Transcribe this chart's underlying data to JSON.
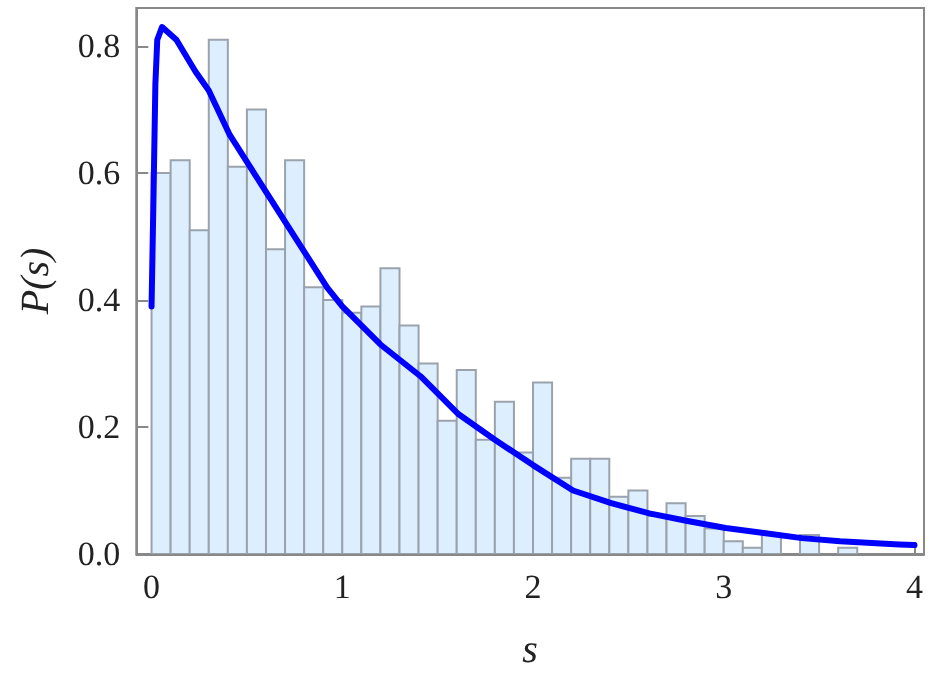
{
  "chart_data": {
    "type": "histogram",
    "xlabel": "s",
    "ylabel": "P(s)",
    "xlim": [
      -0.08,
      4.05
    ],
    "ylim": [
      0,
      0.86
    ],
    "xticks": [
      0,
      1,
      2,
      3,
      4
    ],
    "yticks": [
      {
        "value": 0,
        "label": "0.0"
      },
      {
        "value": 0.2,
        "label": "0.2"
      },
      {
        "value": 0.4,
        "label": "0.4"
      },
      {
        "value": 0.6,
        "label": "0.6"
      },
      {
        "value": 0.8,
        "label": "0.8"
      }
    ],
    "series": [
      {
        "color": "#ddeeff",
        "bins": [
          0,
          0.1,
          0.2,
          0.3,
          0.4,
          0.5,
          0.6,
          0.7,
          0.8,
          0.9,
          1.0,
          1.1,
          1.2,
          1.3,
          1.4,
          1.5,
          1.6,
          1.7,
          1.8,
          1.9,
          2.0,
          2.1,
          2.2,
          2.3,
          2.4,
          2.5,
          2.6,
          2.7,
          2.8,
          2.9,
          3.0,
          3.1,
          3.2,
          3.3,
          3.4,
          3.5,
          3.6,
          3.7
        ],
        "values": [
          0.6,
          0.62,
          0.51,
          0.81,
          0.61,
          0.7,
          0.48,
          0.62,
          0.42,
          0.4,
          0.38,
          0.39,
          0.45,
          0.36,
          0.3,
          0.21,
          0.29,
          0.18,
          0.24,
          0.16,
          0.27,
          0.12,
          0.15,
          0.15,
          0.09,
          0.1,
          0.06,
          0.08,
          0.06,
          0.04,
          0.02,
          0.01,
          0.03,
          0,
          0.03,
          0,
          0.01
        ]
      },
      {
        "type": "line",
        "color": "#0000ff",
        "x": [
          0,
          0.01,
          0.02,
          0.03,
          0.055,
          0.13,
          0.23,
          0.3,
          0.41,
          0.58,
          0.75,
          0.92,
          1.0,
          1.2,
          1.41,
          1.61,
          1.8,
          2.0,
          2.21,
          2.41,
          2.61,
          2.81,
          3.01,
          3.21,
          3.41,
          3.61,
          3.92,
          4.0
        ],
        "values": [
          0.39,
          0.56,
          0.74,
          0.81,
          0.83,
          0.81,
          0.76,
          0.73,
          0.66,
          0.58,
          0.5,
          0.42,
          0.39,
          0.33,
          0.28,
          0.22,
          0.18,
          0.14,
          0.1,
          0.08,
          0.064,
          0.052,
          0.041,
          0.033,
          0.025,
          0.02,
          0.015,
          0.014
        ]
      }
    ]
  }
}
